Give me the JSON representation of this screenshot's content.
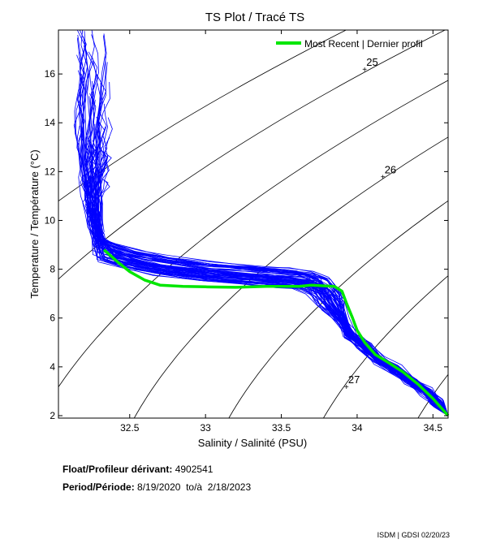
{
  "chart_data": {
    "type": "line",
    "title": "TS Plot / Tracé TS",
    "xlabel": "Salinity / Salinité (PSU)",
    "ylabel": "Temperature / Température (°C)",
    "xlim": [
      32.03,
      34.6
    ],
    "ylim": [
      1.9,
      17.8
    ],
    "x_ticks": [
      32.5,
      33,
      33.5,
      34,
      34.5
    ],
    "x_tick_labels": [
      "32.5",
      "33",
      "33.5",
      "34",
      "34.5"
    ],
    "y_ticks": [
      2,
      4,
      6,
      8,
      10,
      12,
      14,
      16
    ],
    "y_tick_labels": [
      "2",
      "4",
      "6",
      "8",
      "10",
      "12",
      "14",
      "16"
    ],
    "legend": {
      "label": "Most Recent | Dernier profil",
      "color": "#00e600",
      "position": "top-right"
    },
    "historical_color": "#0000ff",
    "recent_color": "#00e600",
    "historical_reference_profile": {
      "S": [
        32.25,
        32.27,
        32.26,
        32.24,
        32.23,
        32.24,
        32.26,
        32.28,
        32.3,
        32.35,
        32.5,
        32.7,
        33.0,
        33.3,
        33.5,
        33.65,
        33.75,
        33.82,
        33.9,
        33.95,
        34.05,
        34.15,
        34.25,
        34.35,
        34.45,
        34.53,
        34.6
      ],
      "T": [
        17.6,
        16.8,
        16.0,
        15.0,
        14.0,
        12.5,
        11.0,
        10.0,
        9.2,
        8.7,
        8.4,
        8.15,
        7.9,
        7.75,
        7.65,
        7.55,
        7.3,
        6.7,
        5.9,
        5.3,
        4.8,
        4.3,
        3.9,
        3.45,
        3.0,
        2.5,
        2.0
      ]
    },
    "recent_profile": {
      "S": [
        32.33,
        32.42,
        32.5,
        32.6,
        32.7,
        32.85,
        33.0,
        33.2,
        33.4,
        33.55,
        33.62,
        33.7,
        33.78,
        33.85,
        33.9,
        33.93,
        33.97,
        34.0,
        34.05,
        34.12,
        34.2,
        34.3,
        34.4,
        34.5,
        34.6
      ],
      "T": [
        8.8,
        8.3,
        7.9,
        7.55,
        7.35,
        7.3,
        7.28,
        7.26,
        7.3,
        7.3,
        7.3,
        7.35,
        7.32,
        7.3,
        7.1,
        6.6,
        6.0,
        5.5,
        5.0,
        4.5,
        4.2,
        3.8,
        3.3,
        2.7,
        2.0
      ]
    },
    "density_contours": [
      {
        "label": "25",
        "label_S": 34.05,
        "label_T": 16.2
      },
      {
        "label": "26",
        "label_S": 34.17,
        "label_T": 11.8
      },
      {
        "label": "27",
        "label_S": 33.93,
        "label_T": 3.2
      }
    ]
  },
  "info": {
    "float_label": "Float/Profileur dérivant:",
    "float_id": "4902541",
    "period_label": "Period/Période:",
    "period_value": "8/19/2020  to/à  2/18/2023"
  },
  "footer": "ISDM | GDSI  02/20/23"
}
